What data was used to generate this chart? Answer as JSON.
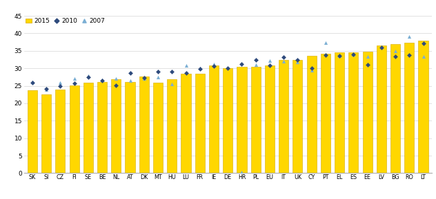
{
  "categories": [
    "SK",
    "SI",
    "CZ",
    "FI",
    "SE",
    "BE",
    "NL",
    "AT",
    "DK",
    "MT",
    "HU",
    "LU",
    "FR",
    "IE",
    "DE",
    "HR",
    "PL",
    "EU",
    "IT",
    "UK",
    "CY",
    "PT",
    "EL",
    "ES",
    "EE",
    "LV",
    "BG",
    "RO",
    "LT"
  ],
  "bar_2015": [
    23.7,
    22.5,
    24.0,
    25.2,
    26.0,
    26.2,
    26.8,
    26.2,
    27.6,
    26.0,
    26.9,
    28.5,
    28.5,
    30.8,
    30.1,
    30.5,
    30.5,
    30.8,
    32.4,
    32.4,
    33.6,
    34.2,
    34.5,
    34.5,
    34.7,
    36.6,
    37.0,
    37.4,
    37.9
  ],
  "dot_2010": [
    26.0,
    24.2,
    25.0,
    25.8,
    27.5,
    26.5,
    25.2,
    28.6,
    27.2,
    29.0,
    29.0,
    28.7,
    29.8,
    30.7,
    30.1,
    31.2,
    32.4,
    30.9,
    33.2,
    32.4,
    30.1,
    33.7,
    33.5,
    33.9,
    31.0,
    35.9,
    33.3,
    33.7,
    37.2
  ],
  "dot_2007": [
    26.1,
    24.0,
    26.0,
    27.0,
    27.9,
    26.7,
    27.1,
    26.5,
    27.1,
    27.4,
    25.6,
    30.8,
    30.1,
    31.3,
    null,
    0.3,
    31.0,
    32.2,
    32.0,
    31.8,
    29.5,
    37.4,
    33.6,
    34.0,
    33.4,
    36.2,
    35.0,
    39.1,
    33.3
  ],
  "bar_color": "#FFD700",
  "bar_edge_color": "#D4A800",
  "dot2010_color": "#2E4A7C",
  "dot2007_color": "#7BAFD4",
  "ylim": [
    0,
    45
  ],
  "yticks": [
    0,
    5,
    10,
    15,
    20,
    25,
    30,
    35,
    40,
    45
  ],
  "legend_labels": [
    "2015",
    "2010",
    "2007"
  ],
  "background_color": "#FFFFFF",
  "grid_color": "#DDDDDD"
}
